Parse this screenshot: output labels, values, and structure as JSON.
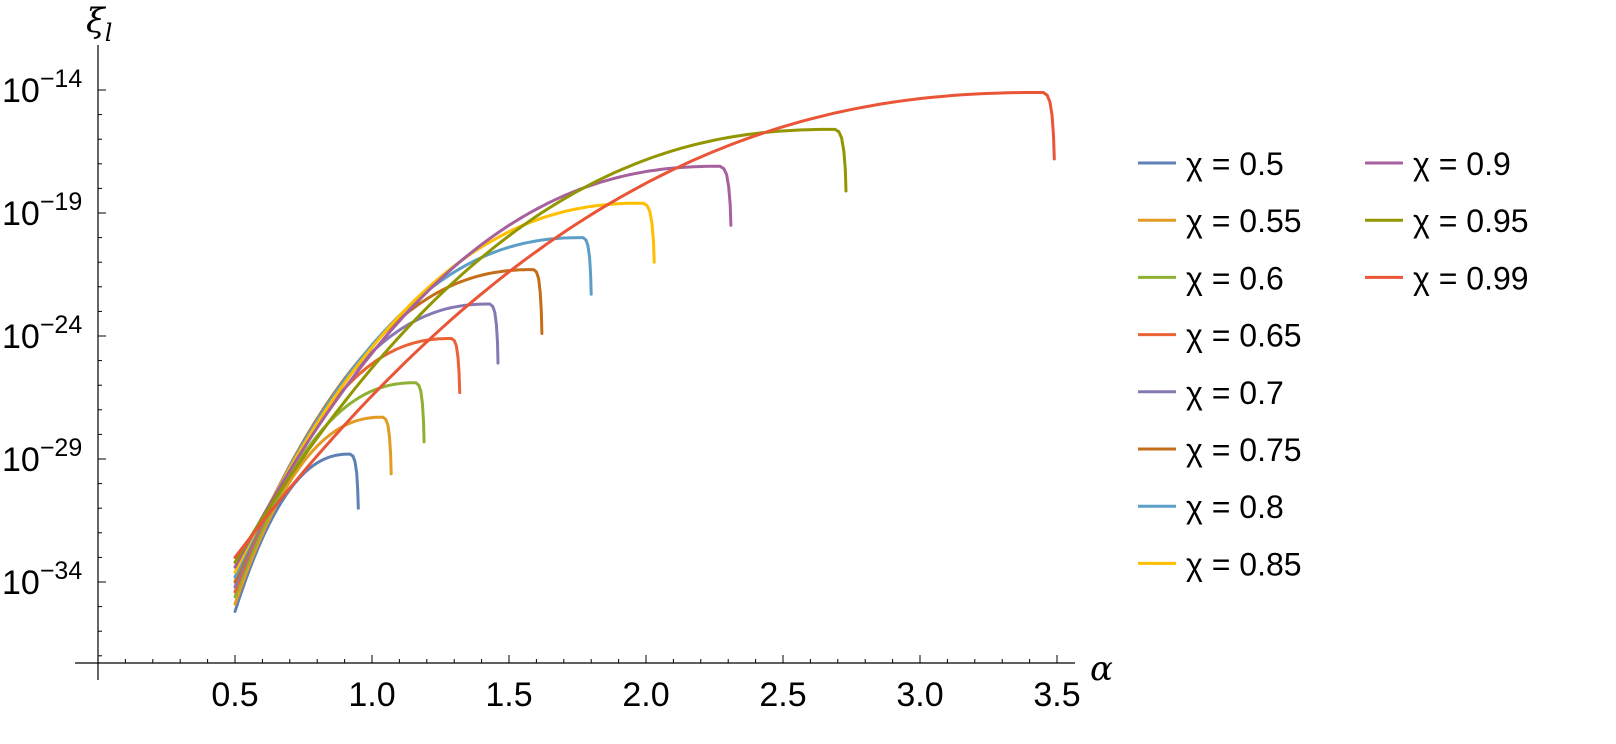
{
  "chart_data": {
    "type": "line",
    "xlabel": "α",
    "ylabel": "ξ",
    "ylabel_sub": "l",
    "y_scale": "log",
    "xlim": [
      0,
      3.5
    ],
    "ylim_exp": [
      -37.5,
      -14
    ],
    "x_ticks": [
      "0.5",
      "1.0",
      "1.5",
      "2.0",
      "2.5",
      "3.0",
      "3.5"
    ],
    "y_ticks": [
      {
        "exp": -14,
        "base": "10",
        "sup": "−14"
      },
      {
        "exp": -19,
        "base": "10",
        "sup": "−19"
      },
      {
        "exp": -24,
        "base": "10",
        "sup": "−24"
      },
      {
        "exp": -29,
        "base": "10",
        "sup": "−29"
      },
      {
        "exp": -34,
        "base": "10",
        "sup": "−34"
      }
    ],
    "grid": false,
    "legend_position": "right",
    "series": [
      {
        "name": "χ = 0.5",
        "color": "#5E81B5",
        "x_start": 0.5,
        "y_start_exp": -35.2,
        "x_peak": 0.92,
        "y_peak_exp": -28.8,
        "x_end": 0.95,
        "y_end_exp": -31.0
      },
      {
        "name": "χ = 0.55",
        "color": "#E19C24",
        "x_start": 0.5,
        "y_start_exp": -34.9,
        "x_peak": 1.04,
        "y_peak_exp": -27.3,
        "x_end": 1.07,
        "y_end_exp": -29.6
      },
      {
        "name": "χ = 0.6",
        "color": "#8FB032",
        "x_start": 0.5,
        "y_start_exp": -34.6,
        "x_peak": 1.16,
        "y_peak_exp": -25.9,
        "x_end": 1.19,
        "y_end_exp": -28.3
      },
      {
        "name": "χ = 0.65",
        "color": "#EB6235",
        "x_start": 0.5,
        "y_start_exp": -34.4,
        "x_peak": 1.29,
        "y_peak_exp": -24.1,
        "x_end": 1.32,
        "y_end_exp": -26.3
      },
      {
        "name": "χ = 0.7",
        "color": "#8778B3",
        "x_start": 0.5,
        "y_start_exp": -34.2,
        "x_peak": 1.43,
        "y_peak_exp": -22.7,
        "x_end": 1.46,
        "y_end_exp": -25.1
      },
      {
        "name": "χ = 0.75",
        "color": "#C56E1A",
        "x_start": 0.5,
        "y_start_exp": -34.0,
        "x_peak": 1.59,
        "y_peak_exp": -21.3,
        "x_end": 1.62,
        "y_end_exp": -23.9
      },
      {
        "name": "χ = 0.8",
        "color": "#5D9EC7",
        "x_start": 0.5,
        "y_start_exp": -33.8,
        "x_peak": 1.77,
        "y_peak_exp": -20.0,
        "x_end": 1.8,
        "y_end_exp": -22.3
      },
      {
        "name": "χ = 0.85",
        "color": "#FFBF00",
        "x_start": 0.5,
        "y_start_exp": -33.6,
        "x_peak": 1.99,
        "y_peak_exp": -18.6,
        "x_end": 2.03,
        "y_end_exp": -21.0
      },
      {
        "name": "χ = 0.9",
        "color": "#A5609D",
        "x_start": 0.5,
        "y_start_exp": -33.4,
        "x_peak": 2.27,
        "y_peak_exp": -17.1,
        "x_end": 2.31,
        "y_end_exp": -19.5
      },
      {
        "name": "χ = 0.95",
        "color": "#929600",
        "x_start": 0.5,
        "y_start_exp": -33.2,
        "x_peak": 2.69,
        "y_peak_exp": -15.6,
        "x_end": 2.73,
        "y_end_exp": -18.1
      },
      {
        "name": "χ = 0.99",
        "color": "#E95536",
        "x_start": 0.5,
        "y_start_exp": -33.0,
        "x_peak": 3.45,
        "y_peak_exp": -14.1,
        "x_end": 3.49,
        "y_end_exp": -16.8
      }
    ]
  }
}
